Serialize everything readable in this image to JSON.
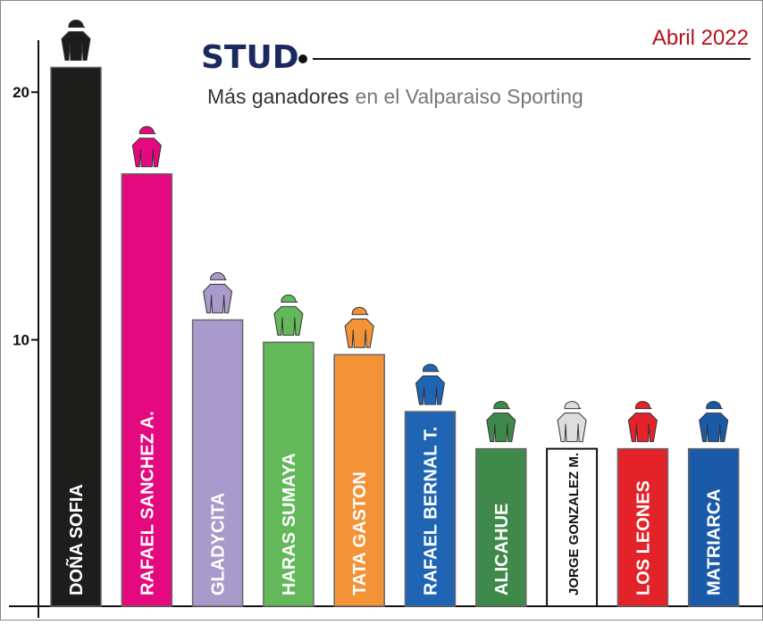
{
  "chart_data": {
    "type": "bar",
    "title": "STUD",
    "date": "Abril 2022",
    "subtitle": [
      "Más ganadores",
      "en el Valparaiso Sporting"
    ],
    "categories": [
      "DOÑA SOFIA",
      "RAFAEL SANCHEZ A.",
      "GLADYCITA",
      "HARAS SUMAYA",
      "TATA GASTON",
      "RAFAEL BERNAL T.",
      "ALICAHUE",
      "JORGE GONZALEZ M.",
      "LOS LEONES",
      "MATRIARCA"
    ],
    "values": [
      21,
      16.7,
      10.8,
      9.9,
      9.4,
      7.1,
      5.6,
      5.6,
      5.6,
      5.6
    ],
    "colors": [
      "#1d1d1b",
      "#e5097f",
      "#a89bcb",
      "#63b95a",
      "#f39237",
      "#1f65b3",
      "#3f8a4a",
      "#ffffff",
      "#e42229",
      "#1a5aa8"
    ],
    "ylim": [
      -0.76,
      22.1
    ],
    "yticks": [
      10,
      20
    ]
  }
}
